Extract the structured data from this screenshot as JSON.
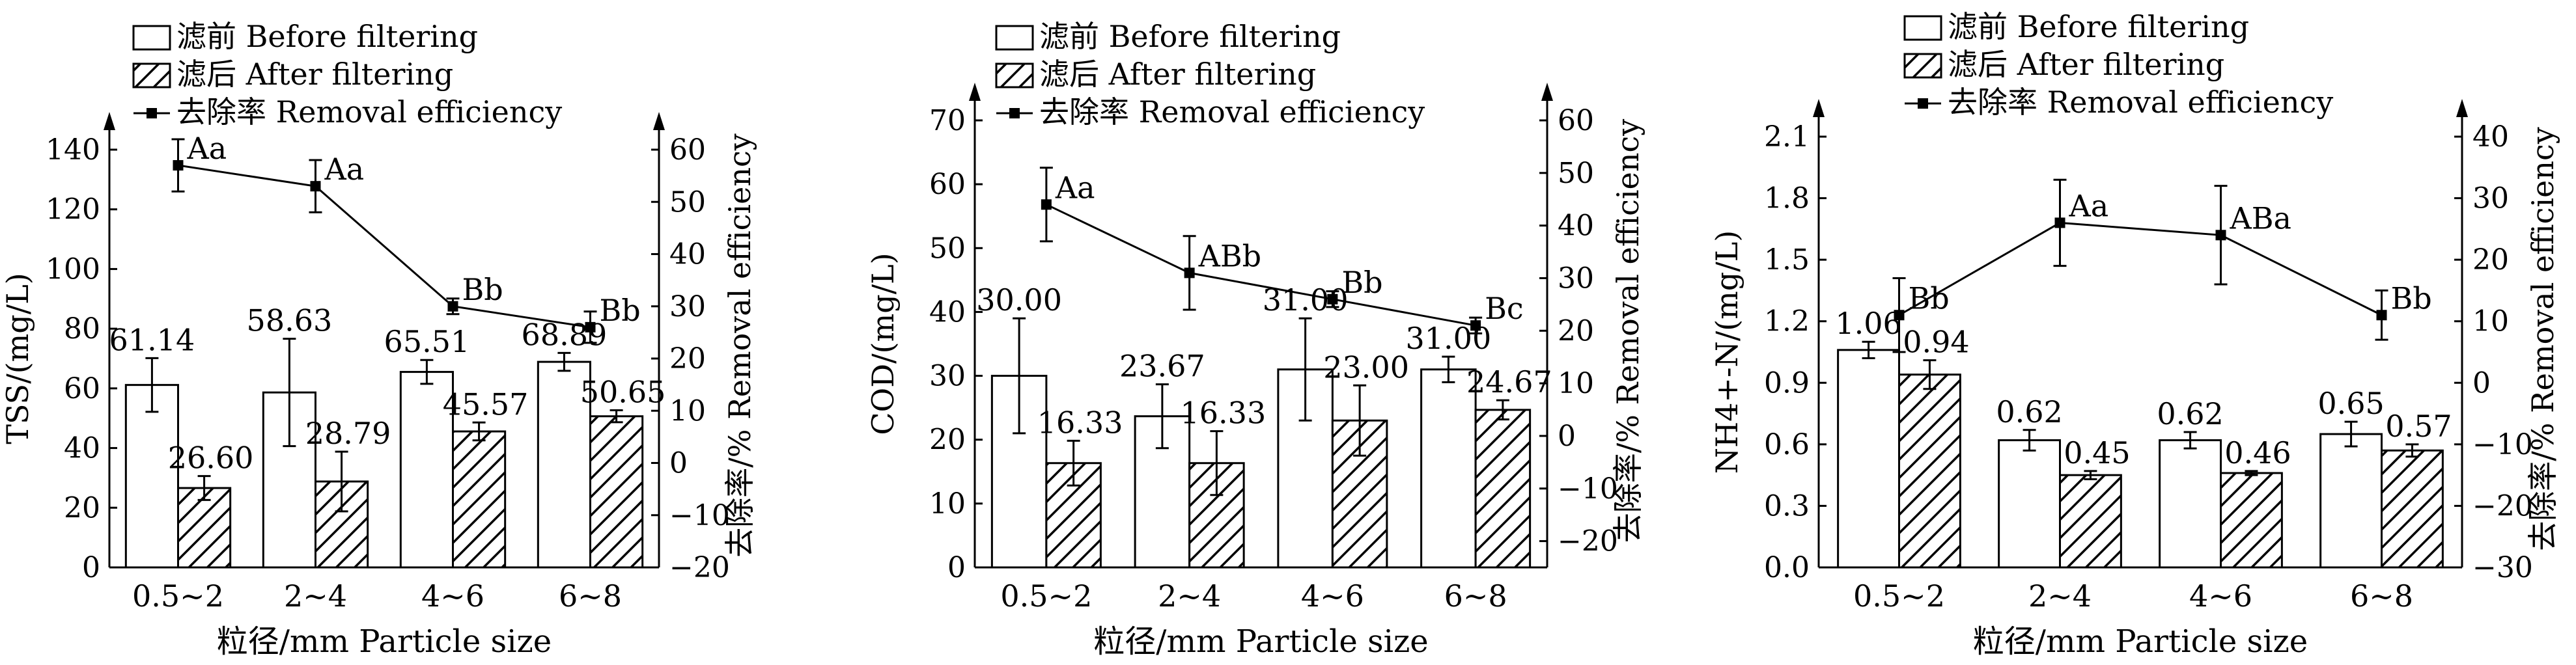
{
  "chart_data": [
    {
      "type": "bar",
      "categories": [
        "0.5~2",
        "2~4",
        "4~6",
        "6~8"
      ],
      "xlabel": "粒径/mm Particle size",
      "ylabel_left": "TSS/(mg/L)",
      "ylabel_right": "去除率/% Removal efficiency",
      "ylim_left": [
        0,
        140
      ],
      "yticks_left": [
        0,
        20,
        40,
        60,
        80,
        100,
        120,
        140
      ],
      "ylim_right": [
        -20,
        60
      ],
      "yticks_right": [
        -20,
        -10,
        0,
        10,
        20,
        30,
        40,
        50,
        60
      ],
      "legend": {
        "before": "滤前 Before filtering",
        "after": "滤后 After filtering",
        "removal": "去除率 Removal efficiency"
      },
      "series": [
        {
          "name": "滤前 Before filtering",
          "values": [
            61.14,
            58.63,
            65.51,
            68.89
          ],
          "errors": [
            9,
            18,
            4,
            3
          ],
          "labels": [
            "61.14",
            "58.63",
            "65.51",
            "68.89"
          ]
        },
        {
          "name": "滤后 After filtering",
          "values": [
            26.6,
            28.79,
            45.57,
            50.65
          ],
          "errors": [
            4,
            10,
            3,
            2
          ],
          "labels": [
            "26.60",
            "28.79",
            "45.57",
            "50.65"
          ]
        }
      ],
      "removal": {
        "name": "去除率 Removal efficiency",
        "values": [
          57,
          53,
          30,
          26
        ],
        "errors": [
          5,
          5,
          1.5,
          3
        ],
        "labels": [
          "Aa",
          "Aa",
          "Bb",
          "Bb"
        ]
      }
    },
    {
      "type": "bar",
      "categories": [
        "0.5~2",
        "2~4",
        "4~6",
        "6~8"
      ],
      "xlabel": "粒径/mm Particle size",
      "ylabel_left": "COD/(mg/L)",
      "ylabel_right": "去除率/% Removal efficiency",
      "ylim_left": [
        0,
        70
      ],
      "yticks_left": [
        0,
        10,
        20,
        30,
        40,
        50,
        60,
        70
      ],
      "ylim_right": [
        -25,
        60
      ],
      "yticks_right": [
        -20,
        -10,
        0,
        10,
        20,
        30,
        40,
        50,
        60
      ],
      "legend": {
        "before": "滤前 Before filtering",
        "after": "滤后 After filtering",
        "removal": "去除率 Removal efficiency"
      },
      "series": [
        {
          "name": "滤前 Before filtering",
          "values": [
            30.0,
            23.67,
            31.0,
            31.0
          ],
          "errors": [
            9,
            5,
            8,
            2
          ],
          "labels": [
            "30.00",
            "23.67",
            "31.00",
            "31.00"
          ]
        },
        {
          "name": "滤后 After filtering",
          "values": [
            16.33,
            16.33,
            23.0,
            24.67
          ],
          "errors": [
            3.5,
            5,
            5.5,
            1.5
          ],
          "labels": [
            "16.33",
            "16.33",
            "23.00",
            "24.67"
          ]
        }
      ],
      "removal": {
        "name": "去除率 Removal efficiency",
        "values": [
          44,
          31,
          26,
          21
        ],
        "errors": [
          7,
          7,
          1.5,
          1.5
        ],
        "labels": [
          "Aa",
          "ABb",
          "Bb",
          "Bc"
        ]
      }
    },
    {
      "type": "bar",
      "categories": [
        "0.5~2",
        "2~4",
        "4~6",
        "6~8"
      ],
      "xlabel": "粒径/mm Particle size",
      "ylabel_left": "NH4+-N/(mg/L)",
      "ylabel_right": "去除率/% Removal efficiency",
      "ylim_left": [
        0,
        2.1
      ],
      "yticks_left": [
        0.0,
        0.3,
        0.6,
        0.9,
        1.2,
        1.5,
        1.8,
        2.1
      ],
      "ylim_right": [
        -30,
        40
      ],
      "yticks_right": [
        -30,
        -20,
        -10,
        0,
        10,
        20,
        30,
        40
      ],
      "legend": {
        "before": "滤前 Before filtering",
        "after": "滤后 After filtering",
        "removal": "去除率 Removal efficiency"
      },
      "series": [
        {
          "name": "滤前 Before filtering",
          "values": [
            1.06,
            0.62,
            0.62,
            0.65
          ],
          "errors": [
            0.04,
            0.05,
            0.04,
            0.06
          ],
          "labels": [
            "1.06",
            "0.62",
            "0.62",
            "0.65"
          ]
        },
        {
          "name": "滤后 After filtering",
          "values": [
            0.94,
            0.45,
            0.46,
            0.57
          ],
          "errors": [
            0.07,
            0.02,
            0.01,
            0.03
          ],
          "labels": [
            "0.94",
            "0.45",
            "0.46",
            "0.57"
          ]
        }
      ],
      "removal": {
        "name": "去除率 Removal efficiency",
        "values": [
          11,
          26,
          24,
          11
        ],
        "errors": [
          6,
          7,
          8,
          4
        ],
        "labels": [
          "Bb",
          "Aa",
          "ABa",
          "Bb"
        ]
      }
    }
  ]
}
